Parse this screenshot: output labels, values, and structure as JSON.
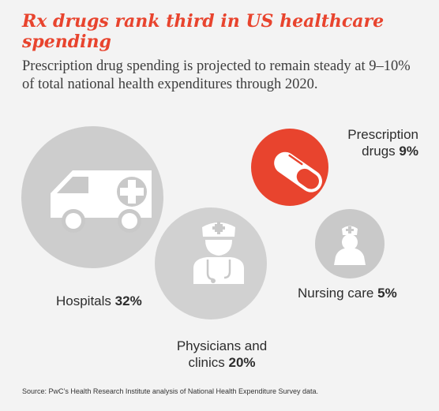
{
  "title": "Rx drugs rank third in US healthcare spending",
  "subtitle": "Prescription drug spending is projected to remain steady at 9–10% of total national health expenditures through 2020.",
  "source": "Source: PwC’s Health Research Institute analysis of National Health Expenditure Survey data.",
  "colors": {
    "accent": "#e8442e",
    "bubble_gray": "#c9c9c9",
    "bubble_highlight": "#e8442e",
    "icon": "#ffffff"
  },
  "chart_data": {
    "type": "bubble",
    "unit": "%",
    "categories": [
      {
        "name_parts": [
          "Prescription",
          "drugs"
        ],
        "value_label": "9%",
        "value": 9,
        "icon": "pill-icon",
        "highlight": true
      },
      {
        "name_parts": [
          "Hospitals"
        ],
        "value_label": "32%",
        "value": 32,
        "icon": "ambulance-icon",
        "highlight": false
      },
      {
        "name_parts": [
          "Physicians and",
          "clinics"
        ],
        "value_label": "20%",
        "value": 20,
        "icon": "doctor-icon",
        "highlight": false
      },
      {
        "name_parts": [
          "Nursing care"
        ],
        "value_label": "5%",
        "value": 5,
        "icon": "nurse-icon",
        "highlight": false
      }
    ]
  }
}
